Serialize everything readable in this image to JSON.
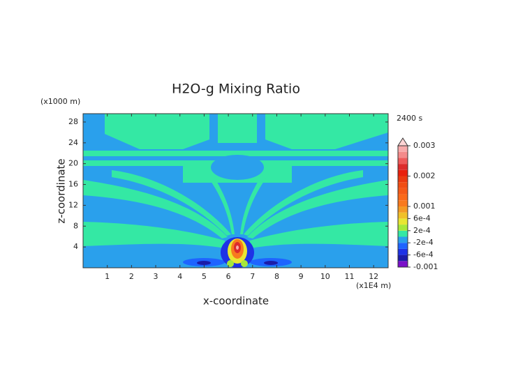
{
  "chart_data": {
    "type": "contour",
    "title": "H2O-g Mixing Ratio",
    "xlabel": "x-coordinate",
    "ylabel": "z-coordinate",
    "x_unit": "(x1E4 m)",
    "y_unit": "(x1000 m)",
    "time_label": "2400 s",
    "xlim": [
      0,
      12.6
    ],
    "ylim": [
      0,
      29.6
    ],
    "xticks": [
      1,
      2,
      3,
      4,
      5,
      6,
      7,
      8,
      9,
      10,
      11,
      12
    ],
    "yticks": [
      4,
      8,
      12,
      16,
      20,
      24,
      28
    ],
    "colorbar": {
      "levels": [
        -0.001,
        -0.0008,
        -0.0006,
        -0.0004,
        -0.0002,
        0,
        0.0002,
        0.0004,
        0.0006,
        0.0008,
        0.001,
        0.0012,
        0.0014,
        0.0016,
        0.0018,
        0.002,
        0.0022,
        0.0024,
        0.0026,
        0.0028,
        0.003
      ],
      "colors": [
        "#7a10c8",
        "#1c1ca8",
        "#1e32e6",
        "#1e64ff",
        "#2aa0ec",
        "#34e8a4",
        "#a6e83a",
        "#e8e632",
        "#f0c028",
        "#f49a24",
        "#f87a1e",
        "#fa6a1a",
        "#f45a18",
        "#f04e14",
        "#ea3a10",
        "#e8200c",
        "#dc2c2c",
        "#ee5a5a",
        "#f48a8a",
        "#f8aaaa"
      ],
      "over_color": "#ffd4d4",
      "ticks": [
        {
          "value": 0.003,
          "label": "0.003"
        },
        {
          "value": 0.002,
          "label": "0.002"
        },
        {
          "value": 0.001,
          "label": "0.001"
        },
        {
          "value": 0.0006,
          "label": "6e-4"
        },
        {
          "value": 0.0002,
          "label": "2e-4"
        },
        {
          "value": -0.0002,
          "label": "-2e-4"
        },
        {
          "value": -0.0006,
          "label": "-6e-4"
        },
        {
          "value": -0.001,
          "label": "-0.001"
        }
      ]
    }
  }
}
